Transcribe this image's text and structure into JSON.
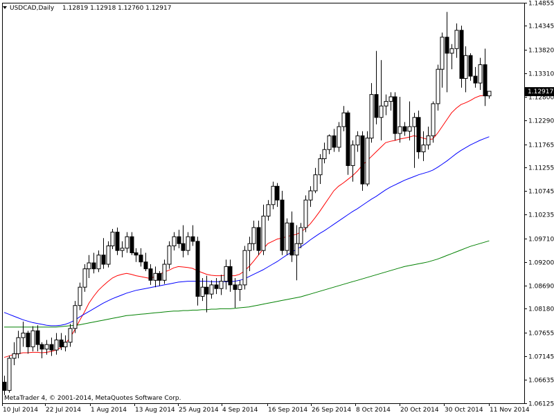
{
  "header": {
    "symbol": "USDCAD,Daily",
    "ohlc": "1.12819 1.12918 1.12760 1.12917"
  },
  "footer": {
    "copyright": "MetaTrader 4, © 2001-2014, MetaQuotes Software Corp."
  },
  "price_tag": "1.12917",
  "colors": {
    "bull_fill": "#ffffff",
    "bear_fill": "#000000",
    "ma_fast": "#ff0000",
    "ma_mid": "#0000ff",
    "ma_slow": "#008000",
    "frame": "#000000",
    "background": "#ffffff"
  },
  "chart_data": {
    "type": "candlestick",
    "title": "USDCAD,Daily",
    "ylim": [
      1.0612,
      1.1485
    ],
    "y_ticks": [
      "1.14855",
      "1.14345",
      "1.13820",
      "1.13310",
      "1.12800",
      "1.12290",
      "1.11765",
      "1.11255",
      "1.10745",
      "1.10235",
      "1.09710",
      "1.09200",
      "1.08690",
      "1.08180",
      "1.07655",
      "1.07145",
      "1.06635",
      "1.06125"
    ],
    "x_ticks": [
      "10 Jul 2014",
      "22 Jul 2014",
      "1 Aug 2014",
      "13 Aug 2014",
      "25 Aug 2014",
      "4 Sep 2014",
      "16 Sep 2014",
      "26 Sep 2014",
      "8 Oct 2014",
      "20 Oct 2014",
      "30 Oct 2014",
      "11 Nov 2014"
    ],
    "candles": [
      [
        1.0658,
        1.0672,
        1.063,
        1.064
      ],
      [
        1.064,
        1.0716,
        1.0635,
        1.071
      ],
      [
        1.071,
        1.0745,
        1.0695,
        1.072
      ],
      [
        1.072,
        1.077,
        1.071,
        1.0755
      ],
      [
        1.0755,
        1.079,
        1.0735,
        1.0765
      ],
      [
        1.0765,
        1.077,
        1.072,
        1.0735
      ],
      [
        1.0735,
        1.078,
        1.0725,
        1.077
      ],
      [
        1.077,
        1.0782,
        1.0725,
        1.074
      ],
      [
        1.074,
        1.0745,
        1.071,
        1.073
      ],
      [
        1.073,
        1.075,
        1.0718,
        1.074
      ],
      [
        1.074,
        1.0755,
        1.0715,
        1.0728
      ],
      [
        1.0728,
        1.0765,
        1.0718,
        1.075
      ],
      [
        1.075,
        1.0765,
        1.0728,
        1.0735
      ],
      [
        1.0735,
        1.076,
        1.0725,
        1.0745
      ],
      [
        1.0745,
        1.0785,
        1.0735,
        1.0775
      ],
      [
        1.0775,
        1.0835,
        1.0765,
        1.0825
      ],
      [
        1.0825,
        1.0875,
        1.0815,
        1.0865
      ],
      [
        1.0865,
        1.0915,
        1.0855,
        1.0905
      ],
      [
        1.0905,
        1.0935,
        1.0885,
        1.0918
      ],
      [
        1.0918,
        1.094,
        1.0895,
        1.0905
      ],
      [
        1.0905,
        1.0945,
        1.0898,
        1.0935
      ],
      [
        1.0935,
        1.0972,
        1.0905,
        1.0915
      ],
      [
        1.0915,
        1.0965,
        1.0908,
        1.0955
      ],
      [
        1.0955,
        1.0992,
        1.0948,
        1.0985
      ],
      [
        1.0985,
        1.0995,
        1.0935,
        1.0945
      ],
      [
        1.0945,
        1.0965,
        1.093,
        1.095
      ],
      [
        1.095,
        1.0985,
        1.094,
        1.0975
      ],
      [
        1.0975,
        1.0985,
        1.0935,
        1.094
      ],
      [
        1.094,
        1.095,
        1.092,
        1.0935
      ],
      [
        1.0935,
        1.095,
        1.091,
        1.092
      ],
      [
        1.092,
        1.094,
        1.09,
        1.0905
      ],
      [
        1.0905,
        1.0915,
        1.087,
        1.088
      ],
      [
        1.088,
        1.091,
        1.0865,
        1.0895
      ],
      [
        1.0895,
        1.09,
        1.0868,
        1.088
      ],
      [
        1.088,
        1.0925,
        1.0872,
        1.0915
      ],
      [
        1.0915,
        1.0965,
        1.0905,
        1.0955
      ],
      [
        1.0955,
        1.0985,
        1.0945,
        1.0975
      ],
      [
        1.0975,
        1.099,
        1.095,
        1.096
      ],
      [
        1.096,
        1.1,
        1.093,
        1.0945
      ],
      [
        1.0945,
        1.0985,
        1.0935,
        1.0975
      ],
      [
        1.0975,
        1.1,
        1.0955,
        1.0965
      ],
      [
        1.0965,
        1.0975,
        1.0825,
        1.0845
      ],
      [
        1.0845,
        1.0885,
        1.0835,
        1.0865
      ],
      [
        1.0865,
        1.089,
        1.081,
        1.085
      ],
      [
        1.085,
        1.088,
        1.084,
        1.087
      ],
      [
        1.087,
        1.0885,
        1.085,
        1.0862
      ],
      [
        1.0862,
        1.0892,
        1.0848,
        1.0878
      ],
      [
        1.0878,
        1.0925,
        1.086,
        1.091
      ],
      [
        1.091,
        1.0925,
        1.0855,
        1.087
      ],
      [
        1.087,
        1.0885,
        1.082,
        1.086
      ],
      [
        1.086,
        1.088,
        1.0835,
        1.087
      ],
      [
        1.087,
        1.0955,
        1.086,
        1.0945
      ],
      [
        1.0945,
        1.0975,
        1.09,
        1.096
      ],
      [
        1.096,
        1.101,
        1.0945,
        1.0995
      ],
      [
        1.0995,
        1.101,
        1.0935,
        1.0945
      ],
      [
        1.0945,
        1.1045,
        1.0935,
        1.102
      ],
      [
        1.102,
        1.1055,
        1.101,
        1.1045
      ],
      [
        1.1045,
        1.1095,
        1.1035,
        1.1085
      ],
      [
        1.1085,
        1.1092,
        1.104,
        1.1055
      ],
      [
        1.1055,
        1.1075,
        1.0935,
        1.0945
      ],
      [
        1.0945,
        1.1015,
        1.0935,
        1.1005
      ],
      [
        1.1005,
        1.103,
        1.092,
        1.0935
      ],
      [
        1.0935,
        1.1,
        1.088,
        1.096
      ],
      [
        1.096,
        1.1005,
        1.095,
        1.0995
      ],
      [
        1.0995,
        1.1065,
        1.0985,
        1.1055
      ],
      [
        1.1055,
        1.1085,
        1.104,
        1.1075
      ],
      [
        1.1075,
        1.1125,
        1.107,
        1.111
      ],
      [
        1.111,
        1.1155,
        1.109,
        1.1145
      ],
      [
        1.1145,
        1.118,
        1.1135,
        1.1165
      ],
      [
        1.1165,
        1.1198,
        1.1155,
        1.1195
      ],
      [
        1.1195,
        1.121,
        1.116,
        1.117
      ],
      [
        1.117,
        1.1225,
        1.116,
        1.1215
      ],
      [
        1.1215,
        1.126,
        1.1205,
        1.1245
      ],
      [
        1.1245,
        1.125,
        1.111,
        1.113
      ],
      [
        1.113,
        1.1185,
        1.1095,
        1.1175
      ],
      [
        1.1175,
        1.1205,
        1.116,
        1.1195
      ],
      [
        1.1195,
        1.1205,
        1.1075,
        1.109
      ],
      [
        1.109,
        1.1205,
        1.1085,
        1.119
      ],
      [
        1.119,
        1.131,
        1.118,
        1.1285
      ],
      [
        1.1285,
        1.138,
        1.122,
        1.1235
      ],
      [
        1.1235,
        1.136,
        1.1185,
        1.126
      ],
      [
        1.126,
        1.1285,
        1.124,
        1.127
      ],
      [
        1.127,
        1.129,
        1.125,
        1.128
      ],
      [
        1.128,
        1.129,
        1.1185,
        1.12
      ],
      [
        1.12,
        1.128,
        1.118,
        1.1215
      ],
      [
        1.1215,
        1.1225,
        1.1195,
        1.1205
      ],
      [
        1.1205,
        1.127,
        1.1185,
        1.1215
      ],
      [
        1.1215,
        1.1245,
        1.1125,
        1.1235
      ],
      [
        1.1235,
        1.125,
        1.1145,
        1.116
      ],
      [
        1.116,
        1.1205,
        1.114,
        1.1175
      ],
      [
        1.1175,
        1.1215,
        1.1165,
        1.1195
      ],
      [
        1.1195,
        1.127,
        1.118,
        1.1265
      ],
      [
        1.1265,
        1.135,
        1.125,
        1.134
      ],
      [
        1.134,
        1.142,
        1.13,
        1.141
      ],
      [
        1.141,
        1.1465,
        1.129,
        1.1375
      ],
      [
        1.1375,
        1.1395,
        1.134,
        1.1385
      ],
      [
        1.1385,
        1.144,
        1.1365,
        1.1425
      ],
      [
        1.1425,
        1.1435,
        1.13,
        1.132
      ],
      [
        1.132,
        1.139,
        1.129,
        1.137
      ],
      [
        1.137,
        1.1375,
        1.1315,
        1.1325
      ],
      [
        1.1325,
        1.1345,
        1.13,
        1.131
      ],
      [
        1.131,
        1.1365,
        1.1295,
        1.135
      ],
      [
        1.135,
        1.1385,
        1.126,
        1.1282
      ],
      [
        1.1282,
        1.1292,
        1.1276,
        1.1292
      ]
    ],
    "series": [
      {
        "name": "",
        "color": "#ff0000",
        "values": [
          1.0712,
          1.0715,
          1.0718,
          1.072,
          1.0722,
          1.0722,
          1.0723,
          1.0723,
          1.0722,
          1.0723,
          1.0725,
          1.0728,
          1.0733,
          1.0742,
          1.0755,
          1.0772,
          1.0792,
          1.081,
          1.083,
          1.0845,
          1.0858,
          1.0868,
          1.0877,
          1.0885,
          1.089,
          1.0893,
          1.0895,
          1.0893,
          1.089,
          1.0888,
          1.0886,
          1.0884,
          1.0888,
          1.0893,
          1.0898,
          1.0902,
          1.0907,
          1.091,
          1.0909,
          1.0908,
          1.0906,
          1.0901,
          1.0897,
          1.0893,
          1.0891,
          1.089,
          1.089,
          1.0891,
          1.089,
          1.089,
          1.0893,
          1.09,
          1.091,
          1.0922,
          1.0935,
          1.0948,
          1.096,
          1.0965,
          1.097,
          1.0972,
          1.0975,
          1.0978,
          1.098,
          1.0985,
          1.0993,
          1.1003,
          1.1016,
          1.103,
          1.1045,
          1.106,
          1.1075,
          1.1085,
          1.1092,
          1.11,
          1.1108,
          1.1118,
          1.113,
          1.114,
          1.115,
          1.116,
          1.117,
          1.118,
          1.1183,
          1.1185,
          1.1188,
          1.119,
          1.1192,
          1.1195,
          1.1193,
          1.119,
          1.1187,
          1.1188,
          1.12,
          1.1215,
          1.123,
          1.1245,
          1.1255,
          1.1263,
          1.1267,
          1.1272,
          1.1278,
          1.1282,
          1.1283,
          1.1283
        ]
      },
      {
        "name": "",
        "color": "#0000ff",
        "values": [
          1.081,
          1.0806,
          1.0802,
          1.0798,
          1.0794,
          1.0791,
          1.0788,
          1.0786,
          1.0784,
          1.0782,
          1.0781,
          1.0781,
          1.0782,
          1.0784,
          1.0788,
          1.0793,
          1.08,
          1.0806,
          1.0812,
          1.0818,
          1.0824,
          1.083,
          1.0835,
          1.084,
          1.0844,
          1.0848,
          1.0852,
          1.0855,
          1.0858,
          1.086,
          1.0862,
          1.0864,
          1.0866,
          1.0868,
          1.087,
          1.0872,
          1.0874,
          1.0876,
          1.0877,
          1.0878,
          1.0878,
          1.0878,
          1.0878,
          1.0878,
          1.0877,
          1.0877,
          1.0877,
          1.0877,
          1.0877,
          1.0878,
          1.088,
          1.0883,
          1.0888,
          1.0893,
          1.0898,
          1.0903,
          1.0909,
          1.0915,
          1.0921,
          1.0928,
          1.0935,
          1.0941,
          1.0947,
          1.0953,
          1.096,
          1.0968,
          1.0975,
          1.0982,
          1.0988,
          1.0995,
          1.1002,
          1.1009,
          1.1016,
          1.1023,
          1.103,
          1.1036,
          1.1043,
          1.105,
          1.1057,
          1.1063,
          1.107,
          1.1077,
          1.1083,
          1.1088,
          1.1093,
          1.1098,
          1.1102,
          1.1106,
          1.111,
          1.1113,
          1.1116,
          1.112,
          1.1126,
          1.1133,
          1.114,
          1.1148,
          1.1156,
          1.1163,
          1.1169,
          1.1175,
          1.118,
          1.1185,
          1.1189,
          1.1193
        ]
      },
      {
        "name": "",
        "color": "#008000",
        "values": [
          1.0778,
          1.0778,
          1.0778,
          1.0778,
          1.0778,
          1.0778,
          1.0778,
          1.0778,
          1.0778,
          1.0778,
          1.0778,
          1.0778,
          1.0779,
          1.078,
          1.0781,
          1.0782,
          1.0783,
          1.0785,
          1.0787,
          1.0789,
          1.0791,
          1.0793,
          1.0795,
          1.0797,
          1.0799,
          1.0801,
          1.0803,
          1.0804,
          1.0805,
          1.0806,
          1.0807,
          1.0808,
          1.0809,
          1.081,
          1.0811,
          1.0812,
          1.0813,
          1.0813,
          1.0814,
          1.0814,
          1.0815,
          1.0815,
          1.0816,
          1.0816,
          1.0817,
          1.0817,
          1.0818,
          1.0818,
          1.0818,
          1.0819,
          1.082,
          1.0821,
          1.0822,
          1.0824,
          1.0826,
          1.0828,
          1.083,
          1.0832,
          1.0834,
          1.0836,
          1.0838,
          1.084,
          1.0842,
          1.0844,
          1.0847,
          1.085,
          1.0853,
          1.0856,
          1.0859,
          1.0862,
          1.0865,
          1.0868,
          1.0871,
          1.0874,
          1.0877,
          1.088,
          1.0883,
          1.0886,
          1.0889,
          1.0892,
          1.0895,
          1.0898,
          1.0901,
          1.0904,
          1.0907,
          1.091,
          1.0912,
          1.0914,
          1.0916,
          1.0918,
          1.092,
          1.0923,
          1.0926,
          1.093,
          1.0934,
          1.0938,
          1.0942,
          1.0946,
          1.095,
          1.0954,
          1.0957,
          1.096,
          1.0963,
          1.0966
        ]
      }
    ],
    "grid": false,
    "legend": false
  }
}
